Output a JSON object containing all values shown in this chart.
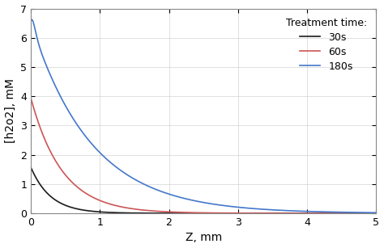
{
  "title": "",
  "xlabel": "Z, mm",
  "ylabel": "[h2o2], mM",
  "xlim": [
    0,
    5
  ],
  "ylim": [
    0,
    7
  ],
  "yticks": [
    0,
    1,
    2,
    3,
    4,
    5,
    6,
    7
  ],
  "xticks": [
    0,
    1,
    2,
    3,
    4,
    5
  ],
  "legend_title": "Treatment time:",
  "legend_labels": [
    "30s",
    "60s",
    "180s"
  ],
  "line_colors": [
    "#1a1a1a",
    "#cc5555",
    "#4477cc"
  ],
  "curve_30s": {
    "amplitude": 1.58,
    "decay": 3.5
  },
  "curve_60s": {
    "amplitude": 3.95,
    "decay": 2.2
  },
  "curve_180s": {
    "amplitude": 6.55,
    "decay": 1.15,
    "osc_amp1": 0.45,
    "osc_freq1": 18.0,
    "osc_decay1": 18.0,
    "osc_amp2": 0.3,
    "osc_freq2": 30.0,
    "osc_decay2": 25.0
  },
  "background_color": "#ffffff",
  "grid_color": "#c8c8c8",
  "spine_color": "#888888"
}
